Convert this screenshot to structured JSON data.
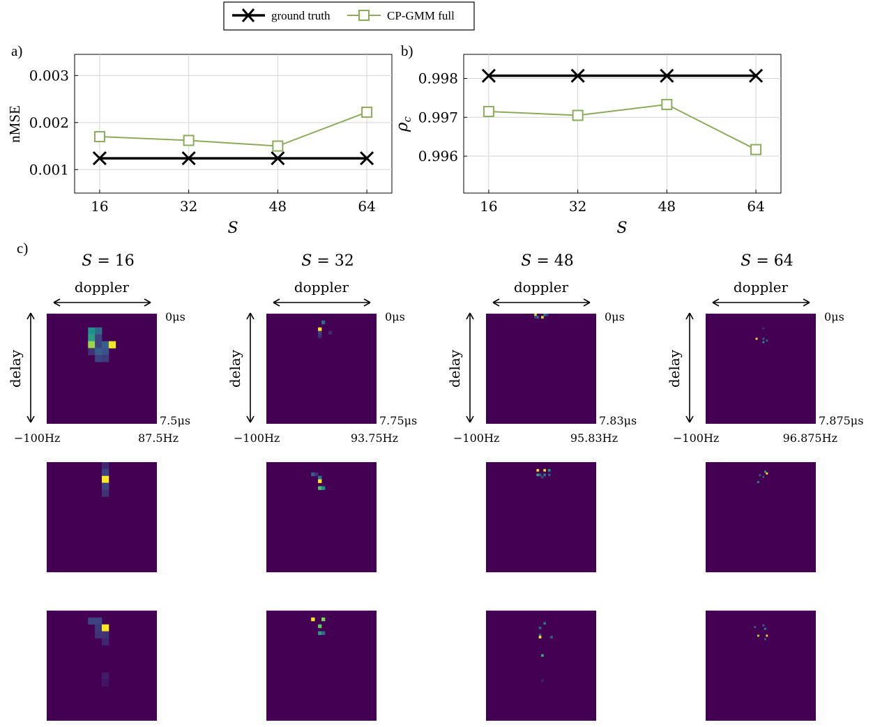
{
  "legend": {
    "entries": [
      {
        "label": "ground truth",
        "color": "#000000",
        "marker": "x"
      },
      {
        "label": "CP-GMM full",
        "color": "#8daa5b",
        "marker": "square"
      }
    ]
  },
  "chart_data": [
    {
      "panel": "a)",
      "type": "line",
      "xlabel": "S",
      "ylabel": "nMSE",
      "x": [
        16,
        32,
        48,
        64
      ],
      "xticks": [
        "16",
        "32",
        "48",
        "64"
      ],
      "yticks": [
        "0.001",
        "0.002",
        "0.003"
      ],
      "ytick_values": [
        0.001,
        0.002,
        0.003
      ],
      "ylim": [
        0.0005,
        0.00345
      ],
      "xlim": [
        11.5,
        68.5
      ],
      "grid": true,
      "series": [
        {
          "name": "ground truth",
          "values": [
            0.00124,
            0.00124,
            0.00124,
            0.00124
          ]
        },
        {
          "name": "CP-GMM full",
          "values": [
            0.0017,
            0.00162,
            0.0015,
            0.00222
          ]
        }
      ]
    },
    {
      "panel": "b)",
      "type": "line",
      "xlabel": "S",
      "ylabel": "ρ",
      "ylabel_sub": "c",
      "x": [
        16,
        32,
        48,
        64
      ],
      "xticks": [
        "16",
        "32",
        "48",
        "64"
      ],
      "yticks": [
        "0.998",
        "0.997",
        "0.996"
      ],
      "ytick_values": [
        0.998,
        0.997,
        0.996
      ],
      "ylim": [
        0.99505,
        0.99862
      ],
      "xlim": [
        11.5,
        68.5
      ],
      "grid": true,
      "series": [
        {
          "name": "ground truth",
          "values": [
            0.99807,
            0.99807,
            0.99807,
            0.99807
          ]
        },
        {
          "name": "CP-GMM full",
          "values": [
            0.99715,
            0.99705,
            0.99733,
            0.99617
          ]
        }
      ]
    },
    {
      "panel": "c)",
      "type": "heatmap",
      "axis_labels": {
        "x": "doppler",
        "y": "delay"
      },
      "background": "#440154",
      "columns": [
        {
          "title_var": "S",
          "title_val": "16",
          "x_min": "−100Hz",
          "x_max": "87.5Hz",
          "y_min": "0μs",
          "y_max": "7.5μs",
          "grid": 16,
          "maps": [
            [
              [
                6,
                2,
                0.5
              ],
              [
                7,
                2,
                0.35
              ],
              [
                6,
                3,
                0.55
              ],
              [
                7,
                3,
                0.2
              ],
              [
                6,
                4,
                0.85
              ],
              [
                7,
                4,
                0.2
              ],
              [
                8,
                4,
                0.3
              ],
              [
                9,
                4,
                0.98
              ],
              [
                6,
                5,
                0.15
              ],
              [
                7,
                5,
                0.3
              ],
              [
                8,
                5,
                0.25
              ],
              [
                7,
                6,
                0.2
              ],
              [
                8,
                6,
                0.18
              ]
            ],
            [
              [
                8,
                0,
                0.12
              ],
              [
                8,
                1,
                0.2
              ],
              [
                8,
                2,
                1.0
              ],
              [
                8,
                3,
                0.2
              ],
              [
                8,
                4,
                0.15
              ]
            ],
            [
              [
                6,
                1,
                0.2
              ],
              [
                7,
                1,
                0.2
              ],
              [
                7,
                2,
                0.18
              ],
              [
                8,
                2,
                1.0
              ],
              [
                7,
                3,
                0.15
              ],
              [
                8,
                3,
                0.15
              ],
              [
                8,
                4,
                0.12
              ],
              [
                8,
                9,
                0.08
              ],
              [
                8,
                10,
                0.06
              ]
            ]
          ]
        },
        {
          "title_var": "S",
          "title_val": "32",
          "x_min": "−100Hz",
          "x_max": "93.75Hz",
          "y_min": "0μs",
          "y_max": "7.75μs",
          "grid": 32,
          "maps": [
            [
              [
                16,
                2,
                0.35
              ],
              [
                15,
                4,
                1.0
              ],
              [
                15,
                5,
                0.2
              ],
              [
                18,
                5,
                0.12
              ],
              [
                15,
                6,
                0.15
              ]
            ],
            [
              [
                13,
                3,
                0.3
              ],
              [
                14,
                3,
                0.15
              ],
              [
                15,
                4,
                0.4
              ],
              [
                15,
                5,
                1.0
              ],
              [
                15,
                7,
                0.7
              ],
              [
                16,
                7,
                0.5
              ]
            ],
            [
              [
                13,
                2,
                1.0
              ],
              [
                16,
                2,
                0.8
              ],
              [
                15,
                4,
                0.75
              ],
              [
                15,
                6,
                0.55
              ],
              [
                16,
                6,
                0.35
              ]
            ]
          ]
        },
        {
          "title_var": "S",
          "title_val": "48",
          "x_min": "−100Hz",
          "x_max": "95.83Hz",
          "y_min": "0μs",
          "y_max": "7.83μs",
          "grid": 48,
          "maps": [
            [
              [
                21,
                0,
                0.9
              ],
              [
                25,
                0,
                0.4
              ],
              [
                26,
                0,
                0.2
              ],
              [
                22,
                1,
                0.35
              ],
              [
                24,
                1,
                0.95
              ],
              [
                21,
                1,
                0.2
              ]
            ],
            [
              [
                22,
                3,
                1.0
              ],
              [
                25,
                3,
                0.95
              ],
              [
                27,
                3,
                0.5
              ],
              [
                22,
                5,
                0.6
              ],
              [
                23,
                5,
                0.3
              ],
              [
                25,
                5,
                0.4
              ],
              [
                27,
                5,
                0.25
              ],
              [
                24,
                6,
                0.2
              ]
            ],
            [
              [
                25,
                5,
                0.4
              ],
              [
                23,
                7,
                0.3
              ],
              [
                23,
                10,
                0.3
              ],
              [
                23,
                11,
                1.0
              ],
              [
                28,
                11,
                0.3
              ],
              [
                24,
                19,
                0.6
              ],
              [
                24,
                30,
                0.1
              ]
            ]
          ]
        },
        {
          "title_var": "S",
          "title_val": "64",
          "x_min": "−100Hz",
          "x_max": "96.875Hz",
          "y_min": "0μs",
          "y_max": "7.875μs",
          "grid": 64,
          "maps": [
            [
              [
                33,
                8,
                0.15
              ],
              [
                29,
                14,
                1.0
              ],
              [
                33,
                14,
                0.35
              ],
              [
                35,
                15,
                0.3
              ],
              [
                33,
                16,
                0.5
              ]
            ],
            [
              [
                34,
                5,
                0.6
              ],
              [
                35,
                6,
                1.0
              ],
              [
                31,
                7,
                0.3
              ],
              [
                33,
                8,
                0.25
              ],
              [
                30,
                11,
                0.5
              ]
            ],
            [
              [
                33,
                8,
                0.3
              ],
              [
                28,
                9,
                0.3
              ],
              [
                34,
                10,
                0.5
              ],
              [
                30,
                14,
                0.9
              ],
              [
                35,
                14,
                1.0
              ],
              [
                34,
                16,
                0.3
              ]
            ]
          ]
        }
      ]
    }
  ]
}
